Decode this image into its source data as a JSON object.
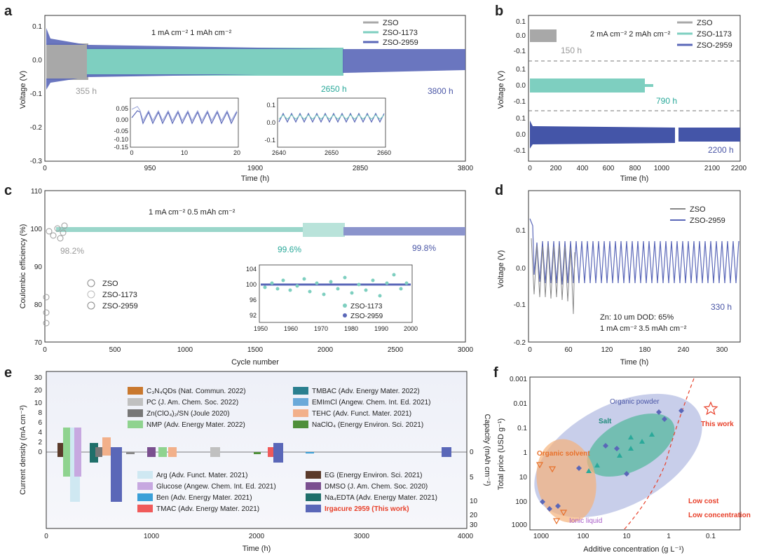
{
  "title": "Composite figure: Zn symmetric cells with ZSO additives and comparison with reported additives",
  "colors": {
    "zso": "#a8a8a8",
    "zso1173": "#7ecfc0",
    "zso2959": "#5a67b8",
    "red": "#e8402a",
    "teal_text": "#2aa99a",
    "navy_text": "#4a56a6"
  },
  "panels": {
    "a": {
      "label": "a",
      "condition": "1 mA cm⁻²  1 mAh cm⁻²",
      "ylabel": "Voltage (V)",
      "xlabel": "Time (h)",
      "yticks": [
        "0.1",
        "0.0",
        "-0.1",
        "-0.2",
        "-0.3"
      ],
      "xticks": [
        "0",
        "950",
        "1900",
        "2850",
        "3800"
      ],
      "legend": [
        "ZSO",
        "ZSO-1173",
        "ZSO-2959"
      ],
      "ann_zso": "355 h",
      "ann_1173": "2650 h",
      "ann_2959": "3800 h",
      "inset1": {
        "yticks": [
          "0.05",
          "0.00",
          "-0.05",
          "-0.10",
          "-0.15"
        ],
        "xticks": [
          "0",
          "10",
          "20"
        ]
      },
      "inset2": {
        "yticks": [
          "0.1",
          "0.0",
          "-0.1"
        ],
        "xticks": [
          "2640",
          "2650",
          "2660"
        ]
      }
    },
    "b": {
      "label": "b",
      "condition": "2 mA cm⁻²  2 mAh cm⁻²",
      "ylabel": "Voltage (V)",
      "xlabel": "Time (h)",
      "yticks1": [
        "0.1",
        "0.0",
        "-0.1"
      ],
      "yticks2": [
        "0.1",
        "0.0",
        "-0.1"
      ],
      "yticks3": [
        "0.1",
        "0.0",
        "-0.1"
      ],
      "xticks": [
        "0",
        "200",
        "400",
        "600",
        "800",
        "1000",
        "2100",
        "2200"
      ],
      "legend": [
        "ZSO",
        "ZSO-1173",
        "ZSO-2959"
      ],
      "ann_zso": "150 h",
      "ann_1173": "790 h",
      "ann_2959": "2200 h"
    },
    "c": {
      "label": "c",
      "condition": "1 mA cm⁻²  0.5 mAh cm⁻²",
      "ylabel": "Coulombic efficiency (%)",
      "xlabel": "Cycle number",
      "yticks": [
        "110",
        "100",
        "90",
        "80",
        "70"
      ],
      "xticks": [
        "0",
        "500",
        "1000",
        "1500",
        "2000",
        "2500",
        "3000"
      ],
      "legend": [
        "ZSO",
        "ZSO-1173",
        "ZSO-2959"
      ],
      "ann_zso": "98.2%",
      "ann_1173": "99.6%",
      "ann_2959": "99.8%",
      "inset": {
        "yticks": [
          "104",
          "100",
          "96",
          "92"
        ],
        "xticks": [
          "1950",
          "1960",
          "1970",
          "1980",
          "1990",
          "2000"
        ],
        "legend": [
          "ZSO-1173",
          "ZSO-2959"
        ]
      }
    },
    "d": {
      "label": "d",
      "ylabel": "Voltage (V)",
      "xlabel": "Time (h)",
      "yticks": [
        "0.1",
        "0.0",
        "-0.1",
        "-0.2"
      ],
      "xticks": [
        "0",
        "60",
        "120",
        "180",
        "240",
        "300"
      ],
      "legend": [
        "ZSO",
        "ZSO-2959"
      ],
      "cond1": "Zn: 10 um   DOD: 65%",
      "cond2": "1 mA cm⁻²  3.5 mAh cm⁻²",
      "ann": "330 h"
    },
    "e": {
      "label": "e",
      "ylabel": "Current density (mA cm⁻²)",
      "ylabel_right": "Capacity (mAh cm⁻²)",
      "xlabel": "Time (h)",
      "yticks_top": [
        "30",
        "20"
      ],
      "yticks": [
        "10",
        "8",
        "6",
        "4",
        "2",
        "0"
      ],
      "yticks_right": [
        "0",
        "5",
        "10",
        "20",
        "30"
      ],
      "xticks": [
        "0",
        "1000",
        "2000",
        "3000",
        "4000"
      ],
      "legend_left": [
        {
          "text": "C₃N₄QDs (Nat. Commun. 2022)",
          "color": "#c9782e"
        },
        {
          "text": "PC (J. Am. Chem. Soc. 2022)",
          "color": "#c0c0c0"
        },
        {
          "text": "Zn(ClO₄)₂/SN (Joule 2020)",
          "color": "#777777"
        },
        {
          "text": "NMP (Adv. Energy Mater. 2022)",
          "color": "#8fd38f"
        }
      ],
      "legend_right": [
        {
          "text": "TMBAC (Adv. Energy Mater. 2022)",
          "color": "#2a7f8f"
        },
        {
          "text": "EMImCl (Angew. Chem. Int. Ed. 2021)",
          "color": "#6aa9d9"
        },
        {
          "text": "TEHC (Adv. Funct. Mater. 2021)",
          "color": "#f2b08a"
        },
        {
          "text": "NaClO₄ (Energy Environ. Sci. 2021)",
          "color": "#4f8f3a"
        }
      ],
      "legend_left2": [
        {
          "text": "Arg (Adv. Funct. Mater. 2021)",
          "color": "#cfe8f2"
        },
        {
          "text": "Glucose (Angew. Chem. Int. Ed. 2021)",
          "color": "#c7a8e0"
        },
        {
          "text": "Ben (Adv. Energy Mater. 2021)",
          "color": "#3aa0d8"
        },
        {
          "text": "TMAC (Adv. Energy Mater. 2021)",
          "color": "#f05a5a"
        }
      ],
      "legend_right2": [
        {
          "text": "EG (Energy Environ. Sci. 2021)",
          "color": "#5a3a2a"
        },
        {
          "text": "DMSO (J. Am. Chem. Soc. 2020)",
          "color": "#7a4f8f"
        },
        {
          "text": "Na₄EDTA (Adv. Energy Mater. 2021)",
          "color": "#1f6f6a"
        },
        {
          "text": "Irgacure 2959 (This work)",
          "color": "#5a67b8",
          "highlight": true
        }
      ]
    },
    "f": {
      "label": "f",
      "ylabel": "Total price (USD g⁻¹)",
      "xlabel": "Additive concentration (g L⁻¹)",
      "yticks": [
        "0.001",
        "0.01",
        "0.1",
        "1",
        "10",
        "100",
        "1000"
      ],
      "xticks": [
        "1000",
        "100",
        "10",
        "1",
        "0.1"
      ],
      "organic_powder": "Organic powder",
      "salt": "Salt",
      "organic_solvent": "Organic solvent",
      "ionic_liquid": "Ionic liquid",
      "this_work": "This work",
      "low_cost": "Low cost",
      "low_conc": "Low concentration"
    }
  }
}
